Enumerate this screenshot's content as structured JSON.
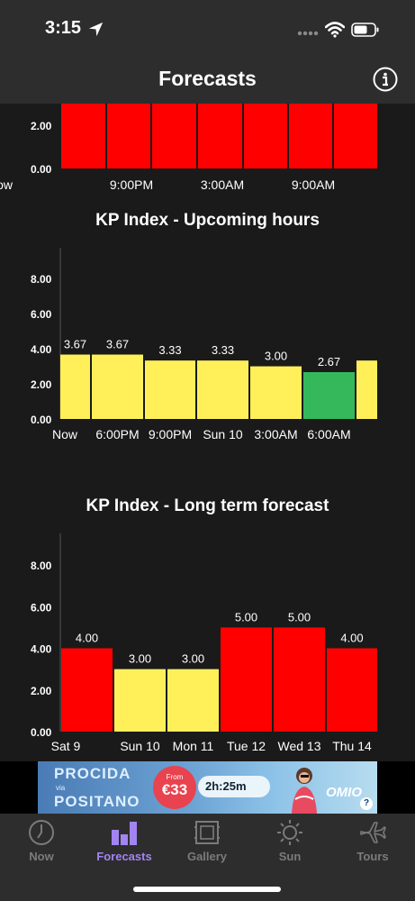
{
  "status_bar": {
    "time": "3:15"
  },
  "nav": {
    "title": "Forecasts"
  },
  "charts": [
    {
      "id": "recent",
      "title": "",
      "chart_data": {
        "type": "bar",
        "categories": [
          "",
          "9:00PM",
          "",
          "3:00AM",
          "",
          "9:00AM",
          "",
          "Now"
        ],
        "values": [
          3,
          3,
          3,
          3,
          3,
          3,
          3,
          3
        ],
        "colors": [
          "#ff0000",
          "#ff0000",
          "#ff0000",
          "#ff0000",
          "#ff0000",
          "#ff0000",
          "#ff0000",
          "#fff05a"
        ],
        "y_ticks": [
          "0.00",
          "2.00"
        ],
        "y_tick_values": [
          0,
          2
        ],
        "ylim": [
          0,
          3
        ],
        "clipped_top": true
      }
    },
    {
      "id": "upcoming",
      "title": "KP Index - Upcoming hours",
      "chart_data": {
        "type": "bar",
        "categories": [
          "Now",
          "6:00PM",
          "9:00PM",
          "Sun 10",
          "3:00AM",
          "6:00AM",
          ""
        ],
        "values": [
          3.67,
          3.67,
          3.33,
          3.33,
          3.0,
          2.67,
          3.33
        ],
        "value_labels": [
          "3.67",
          "3.67",
          "3.33",
          "3.33",
          "3.00",
          "2.67",
          ""
        ],
        "colors": [
          "#fff05a",
          "#fff05a",
          "#fff05a",
          "#fff05a",
          "#fff05a",
          "#35b85c",
          "#fff05a"
        ],
        "y_ticks": [
          "0.00",
          "2.00",
          "4.00",
          "6.00",
          "8.00"
        ],
        "y_tick_values": [
          0,
          2,
          4,
          6,
          8
        ],
        "ylim": [
          0,
          9.5
        ]
      }
    },
    {
      "id": "longterm",
      "title": "KP Index - Long term forecast",
      "chart_data": {
        "type": "bar",
        "categories": [
          "Sat 9",
          "Sun 10",
          "Mon 11",
          "Tue 12",
          "Wed 13",
          "Thu 14"
        ],
        "values": [
          4.0,
          3.0,
          3.0,
          5.0,
          5.0,
          4.0
        ],
        "value_labels": [
          "4.00",
          "3.00",
          "3.00",
          "5.00",
          "5.00",
          "4.00"
        ],
        "colors": [
          "#ff0000",
          "#fff05a",
          "#fff05a",
          "#ff0000",
          "#ff0000",
          "#ff0000"
        ],
        "y_ticks": [
          "0.00",
          "2.00",
          "4.00",
          "6.00",
          "8.00"
        ],
        "y_tick_values": [
          0,
          2,
          4,
          6,
          8
        ],
        "ylim": [
          0,
          9.3
        ]
      }
    }
  ],
  "ad": {
    "line1": "PROCIDA",
    "via": "via",
    "line2": "POSITANO",
    "price_from": "From",
    "price": "€33",
    "duration": "2h:25m",
    "brand": "OMIO",
    "help": "?"
  },
  "tabs": [
    {
      "label": "Now",
      "icon": "clock-icon",
      "active": false
    },
    {
      "label": "Forecasts",
      "icon": "bar-chart-icon",
      "active": true
    },
    {
      "label": "Gallery",
      "icon": "gallery-icon",
      "active": false
    },
    {
      "label": "Sun",
      "icon": "sun-icon",
      "active": false
    },
    {
      "label": "Tours",
      "icon": "airplane-icon",
      "active": false
    }
  ]
}
